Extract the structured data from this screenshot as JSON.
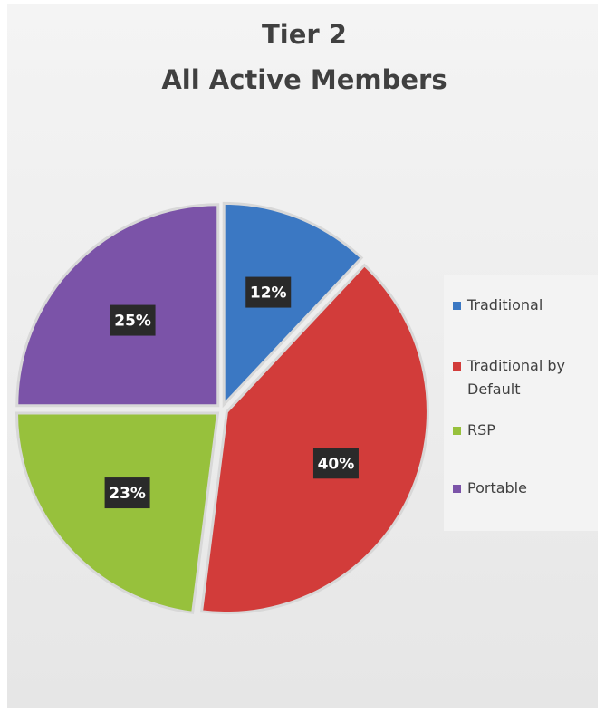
{
  "chart_data": {
    "type": "pie",
    "title": [
      "Tier 2",
      "All Active Members"
    ],
    "categories": [
      "Traditional",
      "Traditional by Default",
      "RSP",
      "Portable"
    ],
    "values": [
      12,
      40,
      23,
      25
    ],
    "value_labels": [
      "12%",
      "40%",
      "23%",
      "25%"
    ],
    "colors": [
      "#3b78c3",
      "#d23c3a",
      "#97c13c",
      "#7b53a8"
    ],
    "legend": "right"
  }
}
